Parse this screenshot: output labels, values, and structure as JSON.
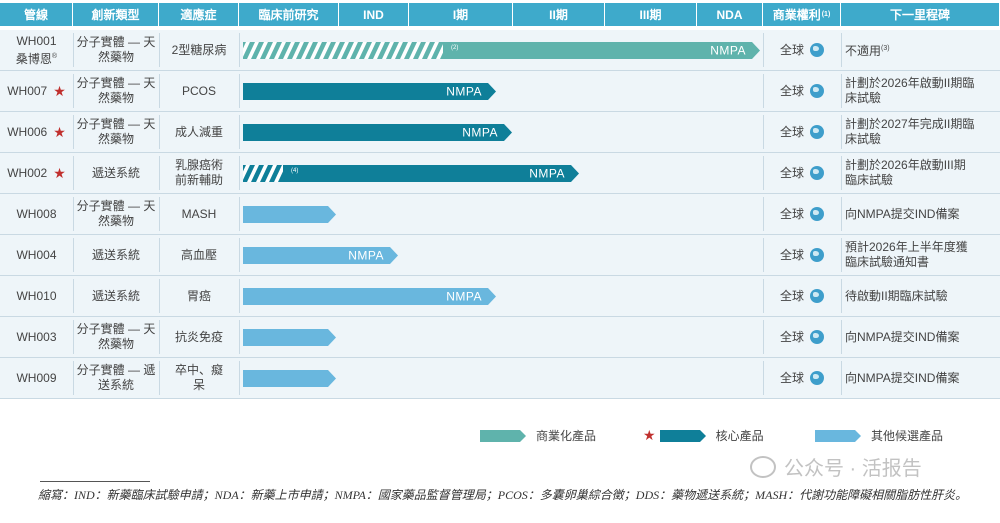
{
  "headers": [
    "管線",
    "創新類型",
    "適應症",
    "臨床前研究",
    "IND",
    "I期",
    "II期",
    "III期",
    "NDA",
    "商業權利",
    "下一里程碑"
  ],
  "header_notes": {
    "rights_sup": "(1)"
  },
  "rows": [
    {
      "pipeline": "WH001",
      "pipeline_sub": "桑博恩",
      "pipeline_sub_mark": "®",
      "core": false,
      "type": "分子實體 — 天然藥物",
      "indication": "2型糖尿病",
      "bar_label": "NMPA",
      "bar_note": "(2)",
      "bar_kind": "commercial",
      "rights": "全球",
      "milestone": "不適用",
      "milestone_sup": "(3)"
    },
    {
      "pipeline": "WH007",
      "core": true,
      "type": "分子實體 — 天然藥物",
      "indication": "PCOS",
      "bar_label": "NMPA",
      "bar_kind": "core",
      "rights": "全球",
      "milestone": "計劃於2026年啟動II期臨床試驗"
    },
    {
      "pipeline": "WH006",
      "core": true,
      "type": "分子實體 — 天然藥物",
      "indication": "成人減重",
      "bar_label": "NMPA",
      "bar_kind": "core",
      "rights": "全球",
      "milestone": "計劃於2027年完成II期臨床試驗"
    },
    {
      "pipeline": "WH002",
      "core": true,
      "type": "遞送系統",
      "indication": "乳腺癌術前新輔助",
      "bar_label": "NMPA",
      "bar_note": "(4)",
      "bar_kind": "core",
      "rights": "全球",
      "milestone": "計劃於2026年啟動III期臨床試驗"
    },
    {
      "pipeline": "WH008",
      "core": false,
      "type": "分子實體 — 天然藥物",
      "indication": "MASH",
      "bar_label": "",
      "bar_kind": "other",
      "rights": "全球",
      "milestone": "向NMPA提交IND備案"
    },
    {
      "pipeline": "WH004",
      "core": false,
      "type": "遞送系統",
      "indication": "高血壓",
      "bar_label": "NMPA",
      "bar_kind": "other",
      "rights": "全球",
      "milestone": "預計2026年上半年度獲臨床試驗通知書"
    },
    {
      "pipeline": "WH010",
      "core": false,
      "type": "遞送系統",
      "indication": "胃癌",
      "bar_label": "NMPA",
      "bar_kind": "other",
      "rights": "全球",
      "milestone": "待啟動II期臨床試驗"
    },
    {
      "pipeline": "WH003",
      "core": false,
      "type": "分子實體 — 天然藥物",
      "indication": "抗炎免疫",
      "bar_label": "",
      "bar_kind": "other",
      "rights": "全球",
      "milestone": "向NMPA提交IND備案"
    },
    {
      "pipeline": "WH009",
      "core": false,
      "type": "分子實體 — 遞送系統",
      "indication": "卒中、癡呆",
      "bar_label": "",
      "bar_kind": "other",
      "rights": "全球",
      "milestone": "向NMPA提交IND備案"
    }
  ],
  "bar_stage_fraction": [
    1.0,
    0.49,
    0.52,
    0.65,
    0.18,
    0.3,
    0.49,
    0.18,
    0.18
  ],
  "legend": {
    "commercial": "商業化產品",
    "core": "核心產品",
    "other": "其他候選產品"
  },
  "colors": {
    "header": "#3eaacb",
    "commercial": "#5fb3ac",
    "core": "#0f7f99",
    "other": "#69b7de",
    "star": "#c0302e"
  },
  "footnote": "縮寫：IND：新藥臨床試驗申請；NDA：新藥上市申請；NMPA：國家藥品監督管理局；PCOS：多囊卵巢綜合徵；DDS：藥物遞送系統；MASH：代謝功能障礙相關脂肪性肝炎。",
  "watermark": "公众号 · 活报告"
}
